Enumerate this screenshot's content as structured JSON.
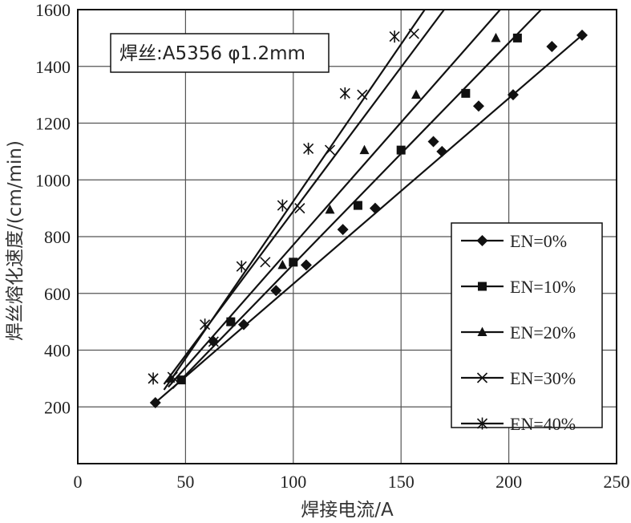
{
  "chart_data": {
    "type": "scatter",
    "xlabel": "焊接电流/A",
    "ylabel": "焊丝熔化速度/(cm/min)",
    "annotation": "焊丝:A5356 φ1.2mm",
    "xlim": [
      0,
      250
    ],
    "ylim": [
      0,
      1600
    ],
    "xticks": [
      0,
      50,
      100,
      150,
      200,
      250
    ],
    "yticks": [
      200,
      400,
      600,
      800,
      1000,
      1200,
      1400,
      1600
    ],
    "grid": true,
    "legend_position": "right",
    "series": [
      {
        "name": "EN=0%",
        "marker": "diamond",
        "points": [
          [
            36,
            215
          ],
          [
            63,
            430
          ],
          [
            77,
            490
          ],
          [
            92,
            610
          ],
          [
            106,
            700
          ],
          [
            123,
            825
          ],
          [
            138,
            900
          ],
          [
            165,
            1135
          ],
          [
            169,
            1100
          ],
          [
            186,
            1260
          ],
          [
            202,
            1300
          ],
          [
            220,
            1470
          ],
          [
            234,
            1510
          ]
        ],
        "fit": [
          [
            36,
            215
          ],
          [
            234,
            1510
          ]
        ]
      },
      {
        "name": "EN=10%",
        "marker": "square",
        "points": [
          [
            48,
            295
          ],
          [
            71,
            500
          ],
          [
            100,
            710
          ],
          [
            130,
            910
          ],
          [
            150,
            1105
          ],
          [
            180,
            1305
          ],
          [
            204,
            1500
          ]
        ],
        "fit": [
          [
            44,
            265
          ],
          [
            215,
            1600
          ]
        ]
      },
      {
        "name": "EN=20%",
        "marker": "triangle",
        "points": [
          [
            43,
            300
          ],
          [
            71,
            500
          ],
          [
            95,
            700
          ],
          [
            117,
            895
          ],
          [
            133,
            1105
          ],
          [
            157,
            1300
          ],
          [
            194,
            1500
          ]
        ],
        "fit": [
          [
            42,
            270
          ],
          [
            196,
            1600
          ]
        ]
      },
      {
        "name": "EN=30%",
        "marker": "x",
        "points": [
          [
            44,
            305
          ],
          [
            63,
            430
          ],
          [
            87,
            710
          ],
          [
            103,
            900
          ],
          [
            117,
            1105
          ],
          [
            132,
            1300
          ],
          [
            156,
            1515
          ]
        ],
        "fit": [
          [
            40,
            280
          ],
          [
            170,
            1600
          ]
        ]
      },
      {
        "name": "EN=40%",
        "marker": "asterisk",
        "points": [
          [
            35,
            300
          ],
          [
            59,
            490
          ],
          [
            76,
            695
          ],
          [
            95,
            910
          ],
          [
            107,
            1110
          ],
          [
            124,
            1305
          ],
          [
            147,
            1505
          ]
        ],
        "fit": [
          [
            40,
            260
          ],
          [
            161,
            1600
          ]
        ]
      }
    ]
  }
}
